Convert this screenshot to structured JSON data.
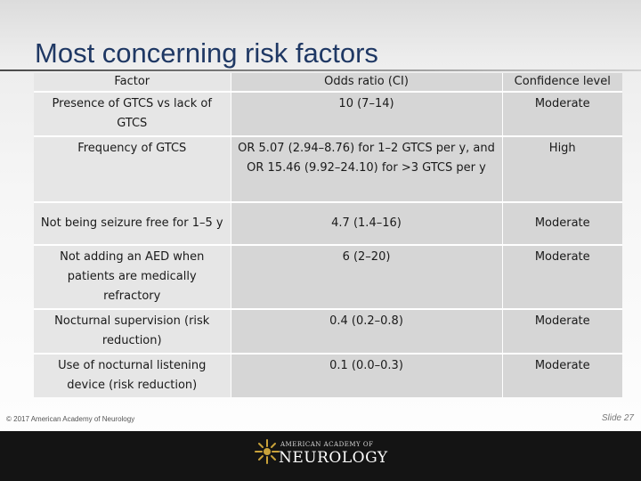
{
  "slide": {
    "title": "Most concerning risk factors",
    "copyright": "© 2017 American Academy of Neurology",
    "slide_number": "Slide 27"
  },
  "table": {
    "headers": [
      "Factor",
      "Odds ratio (CI)",
      "Confidence level"
    ],
    "rows": [
      {
        "factor": "Presence of GTCS vs lack of GTCS",
        "odds": "10 (7–14)",
        "confidence": "Moderate"
      },
      {
        "factor": "Frequency of GTCS",
        "odds": "OR 5.07 (2.94–8.76) for 1–2 GTCS per y, and OR 15.46 (9.92–24.10) for >3 GTCS per y",
        "confidence": "High"
      },
      {
        "factor": "Not being seizure free for 1–5 y",
        "odds": "4.7 (1.4–16)",
        "confidence": "Moderate"
      },
      {
        "factor": "Not adding an AED when patients are medically refractory",
        "odds": "6 (2–20)",
        "confidence": "Moderate"
      },
      {
        "factor": "Nocturnal supervision (risk reduction)",
        "odds": "0.4 (0.2–0.8)",
        "confidence": "Moderate"
      },
      {
        "factor": "Use of nocturnal listening device (risk reduction)",
        "odds": "0.1 (0.0–0.3)",
        "confidence": "Moderate"
      }
    ]
  },
  "logo": {
    "line1": "AMERICAN ACADEMY OF",
    "line2": "NEUROLOGY",
    "icon": "sunburst-logo-icon"
  },
  "colors": {
    "title": "#1f3864",
    "cell_light": "#e6e6e6",
    "cell_dark": "#d6d6d6",
    "footer": "#141414"
  }
}
